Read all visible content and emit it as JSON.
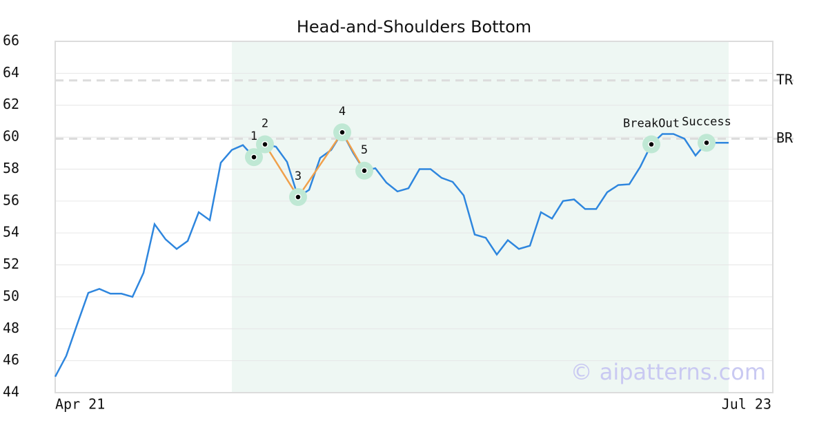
{
  "chart_data": {
    "type": "line",
    "title": "Head-and-Shoulders Bottom",
    "categories": [
      "Apr 21",
      null,
      null,
      null,
      null,
      null,
      null,
      null,
      null,
      null,
      null,
      null,
      null,
      null,
      null,
      null,
      null,
      null,
      null,
      null,
      null,
      null,
      null,
      null,
      null,
      null,
      null,
      null,
      null,
      null,
      null,
      null,
      null,
      null,
      null,
      null,
      null,
      null,
      null,
      null,
      null,
      null,
      null,
      null,
      null,
      null,
      null,
      null,
      null,
      null,
      null,
      null,
      null,
      null,
      null,
      null,
      null,
      null,
      null,
      null,
      null,
      null,
      null,
      null,
      null,
      "Jul 23"
    ],
    "series": [
      {
        "color": "#2e86de",
        "values": [
          45.0,
          46.3,
          48.3,
          50.25,
          50.5,
          50.2,
          50.2,
          50.0,
          51.5,
          54.55,
          53.6,
          53.0,
          53.5,
          55.3,
          54.8,
          58.4,
          59.2,
          59.5,
          58.75,
          59.55,
          59.4,
          58.45,
          56.25,
          56.7,
          58.7,
          59.2,
          60.3,
          59.0,
          57.9,
          58.05,
          57.15,
          56.6,
          56.8,
          58.0,
          58.0,
          57.45,
          57.2,
          56.35,
          53.9,
          53.7,
          52.65,
          53.55,
          53.0,
          53.2,
          55.3,
          54.9,
          56.0,
          56.1,
          55.5,
          55.5,
          56.55,
          57.0,
          57.05,
          58.15,
          59.55,
          60.2,
          60.2,
          59.9,
          58.85,
          59.65,
          59.65,
          59.65,
          null,
          null,
          null,
          null
        ]
      }
    ],
    "ylim": [
      44,
      66
    ],
    "yticks": [
      44,
      46,
      48,
      50,
      52,
      54,
      56,
      58,
      60,
      62,
      64,
      66
    ],
    "grid": true,
    "shaded_span": [
      16,
      61
    ],
    "shade_color": "#eef7f3",
    "reference_lines": [
      {
        "label": "TR",
        "value": 63.55
      },
      {
        "label": "BR",
        "value": 59.9
      }
    ],
    "markers": [
      {
        "label": "1",
        "index": 18,
        "linked": true
      },
      {
        "label": "2",
        "index": 19,
        "linked": true
      },
      {
        "label": "3",
        "index": 22,
        "linked": true
      },
      {
        "label": "4",
        "index": 26,
        "linked": true
      },
      {
        "label": "5",
        "index": 28,
        "linked": true
      },
      {
        "label": "BreakOut",
        "index": 54,
        "linked": false
      },
      {
        "label": "Success",
        "index": 59,
        "linked": false
      }
    ],
    "pattern_color": "#f0a04b",
    "watermark": "© aipatterns.com"
  }
}
